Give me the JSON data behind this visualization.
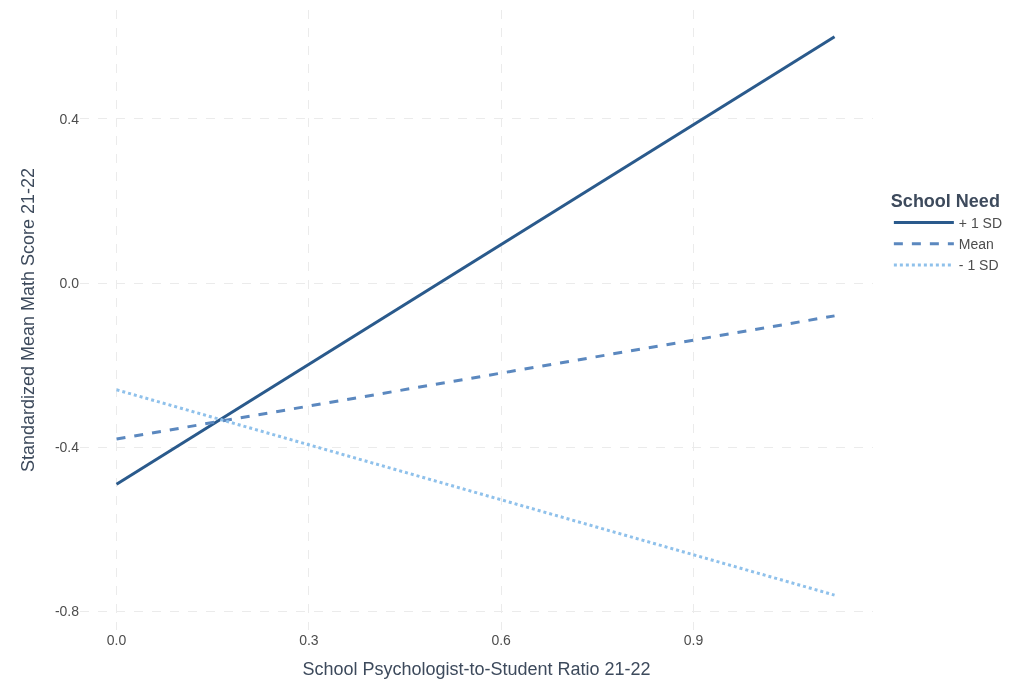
{
  "chart_data": {
    "type": "line",
    "xlabel": "School Psychologist-to-Student Ratio 21-22",
    "ylabel": "Standardized Mean Math Score 21-22",
    "legend_title": "School Need",
    "x": [
      0.0,
      1.12
    ],
    "series": [
      {
        "name": "+ 1 SD",
        "color": "#2a5a8c",
        "values": [
          -0.49,
          0.6
        ],
        "line_style": "solid"
      },
      {
        "name": "Mean",
        "color": "#5b88bf",
        "values": [
          -0.38,
          -0.08
        ],
        "line_style": "dashed"
      },
      {
        "name": "- 1 SD",
        "color": "#8fc1eb",
        "values": [
          -0.26,
          -0.76
        ],
        "line_style": "dotted"
      }
    ],
    "xlim": [
      -0.057,
      1.18
    ],
    "ylim": [
      -0.845,
      0.665
    ],
    "xticks": [
      {
        "value": 0,
        "label": "0.0"
      },
      0.3,
      0.6,
      0.9
    ],
    "yticks": [
      {
        "value": -0.8,
        "label": "-0.8"
      },
      {
        "value": -0.4,
        "label": "-0.4"
      },
      {
        "value": 0,
        "label": "0.0"
      },
      0.4
    ],
    "grid": true,
    "legend": "right",
    "marker": "none"
  }
}
